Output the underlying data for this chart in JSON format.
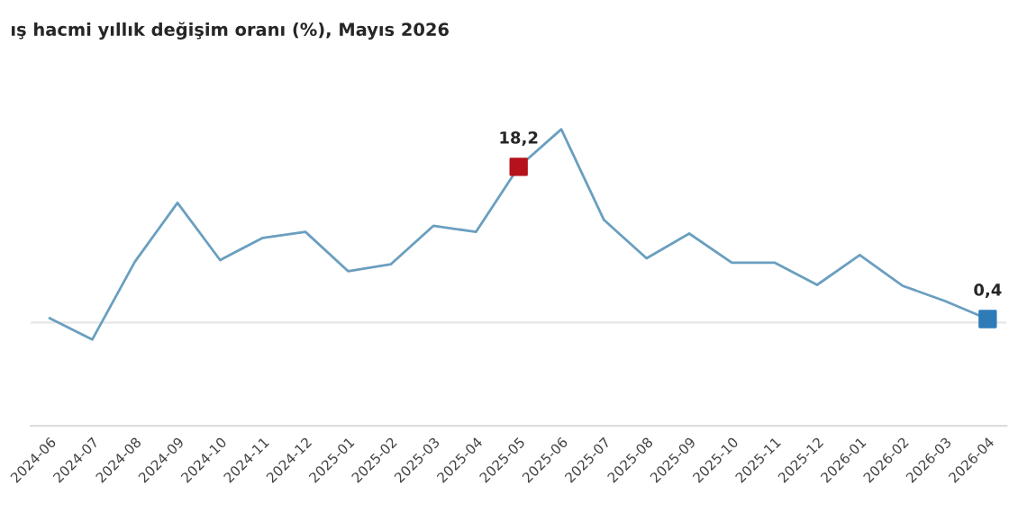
{
  "chart_data": {
    "type": "line",
    "title": "ış hacmi yıllık değişim oranı (%), Mayıs 2026",
    "categories": [
      "2024-06",
      "2024-07",
      "2024-08",
      "2024-09",
      "2024-10",
      "2024-11",
      "2024-12",
      "2025-01",
      "2025-02",
      "2025-03",
      "2025-04",
      "2025-05",
      "2025-06",
      "2025-07",
      "2025-08",
      "2025-09",
      "2025-10",
      "2025-11",
      "2025-12",
      "2026-01",
      "2026-02",
      "2026-03",
      "2026-04"
    ],
    "series": [
      {
        "color": "#6a9fc0",
        "values": [
          0.5,
          -2.0,
          7.1,
          14.0,
          7.3,
          9.9,
          10.6,
          6.0,
          6.8,
          11.3,
          10.6,
          18.2,
          22.6,
          12.0,
          7.5,
          10.4,
          7.0,
          7.0,
          4.4,
          7.9,
          4.3,
          2.5,
          0.4
        ]
      },
      {
        "type": "scatter",
        "marker": "square",
        "colors": [
          null,
          null,
          null,
          null,
          null,
          null,
          null,
          null,
          null,
          null,
          null,
          "#b5121b",
          null,
          null,
          null,
          null,
          null,
          null,
          null,
          null,
          null,
          null,
          "#2e7bb8"
        ],
        "values": [
          null,
          null,
          null,
          null,
          null,
          null,
          null,
          null,
          null,
          null,
          null,
          18.2,
          null,
          null,
          null,
          null,
          null,
          null,
          null,
          null,
          null,
          null,
          0.4
        ],
        "value_labels": [
          null,
          null,
          null,
          null,
          null,
          null,
          null,
          null,
          null,
          null,
          null,
          "18,2",
          null,
          null,
          null,
          null,
          null,
          null,
          null,
          null,
          null,
          null,
          "0,4"
        ]
      }
    ],
    "ref_lines": [
      {
        "axis": "y",
        "value": 0,
        "color": "#e6e6e6"
      }
    ],
    "tick_labels": "x",
    "grid": false,
    "legend": false
  }
}
